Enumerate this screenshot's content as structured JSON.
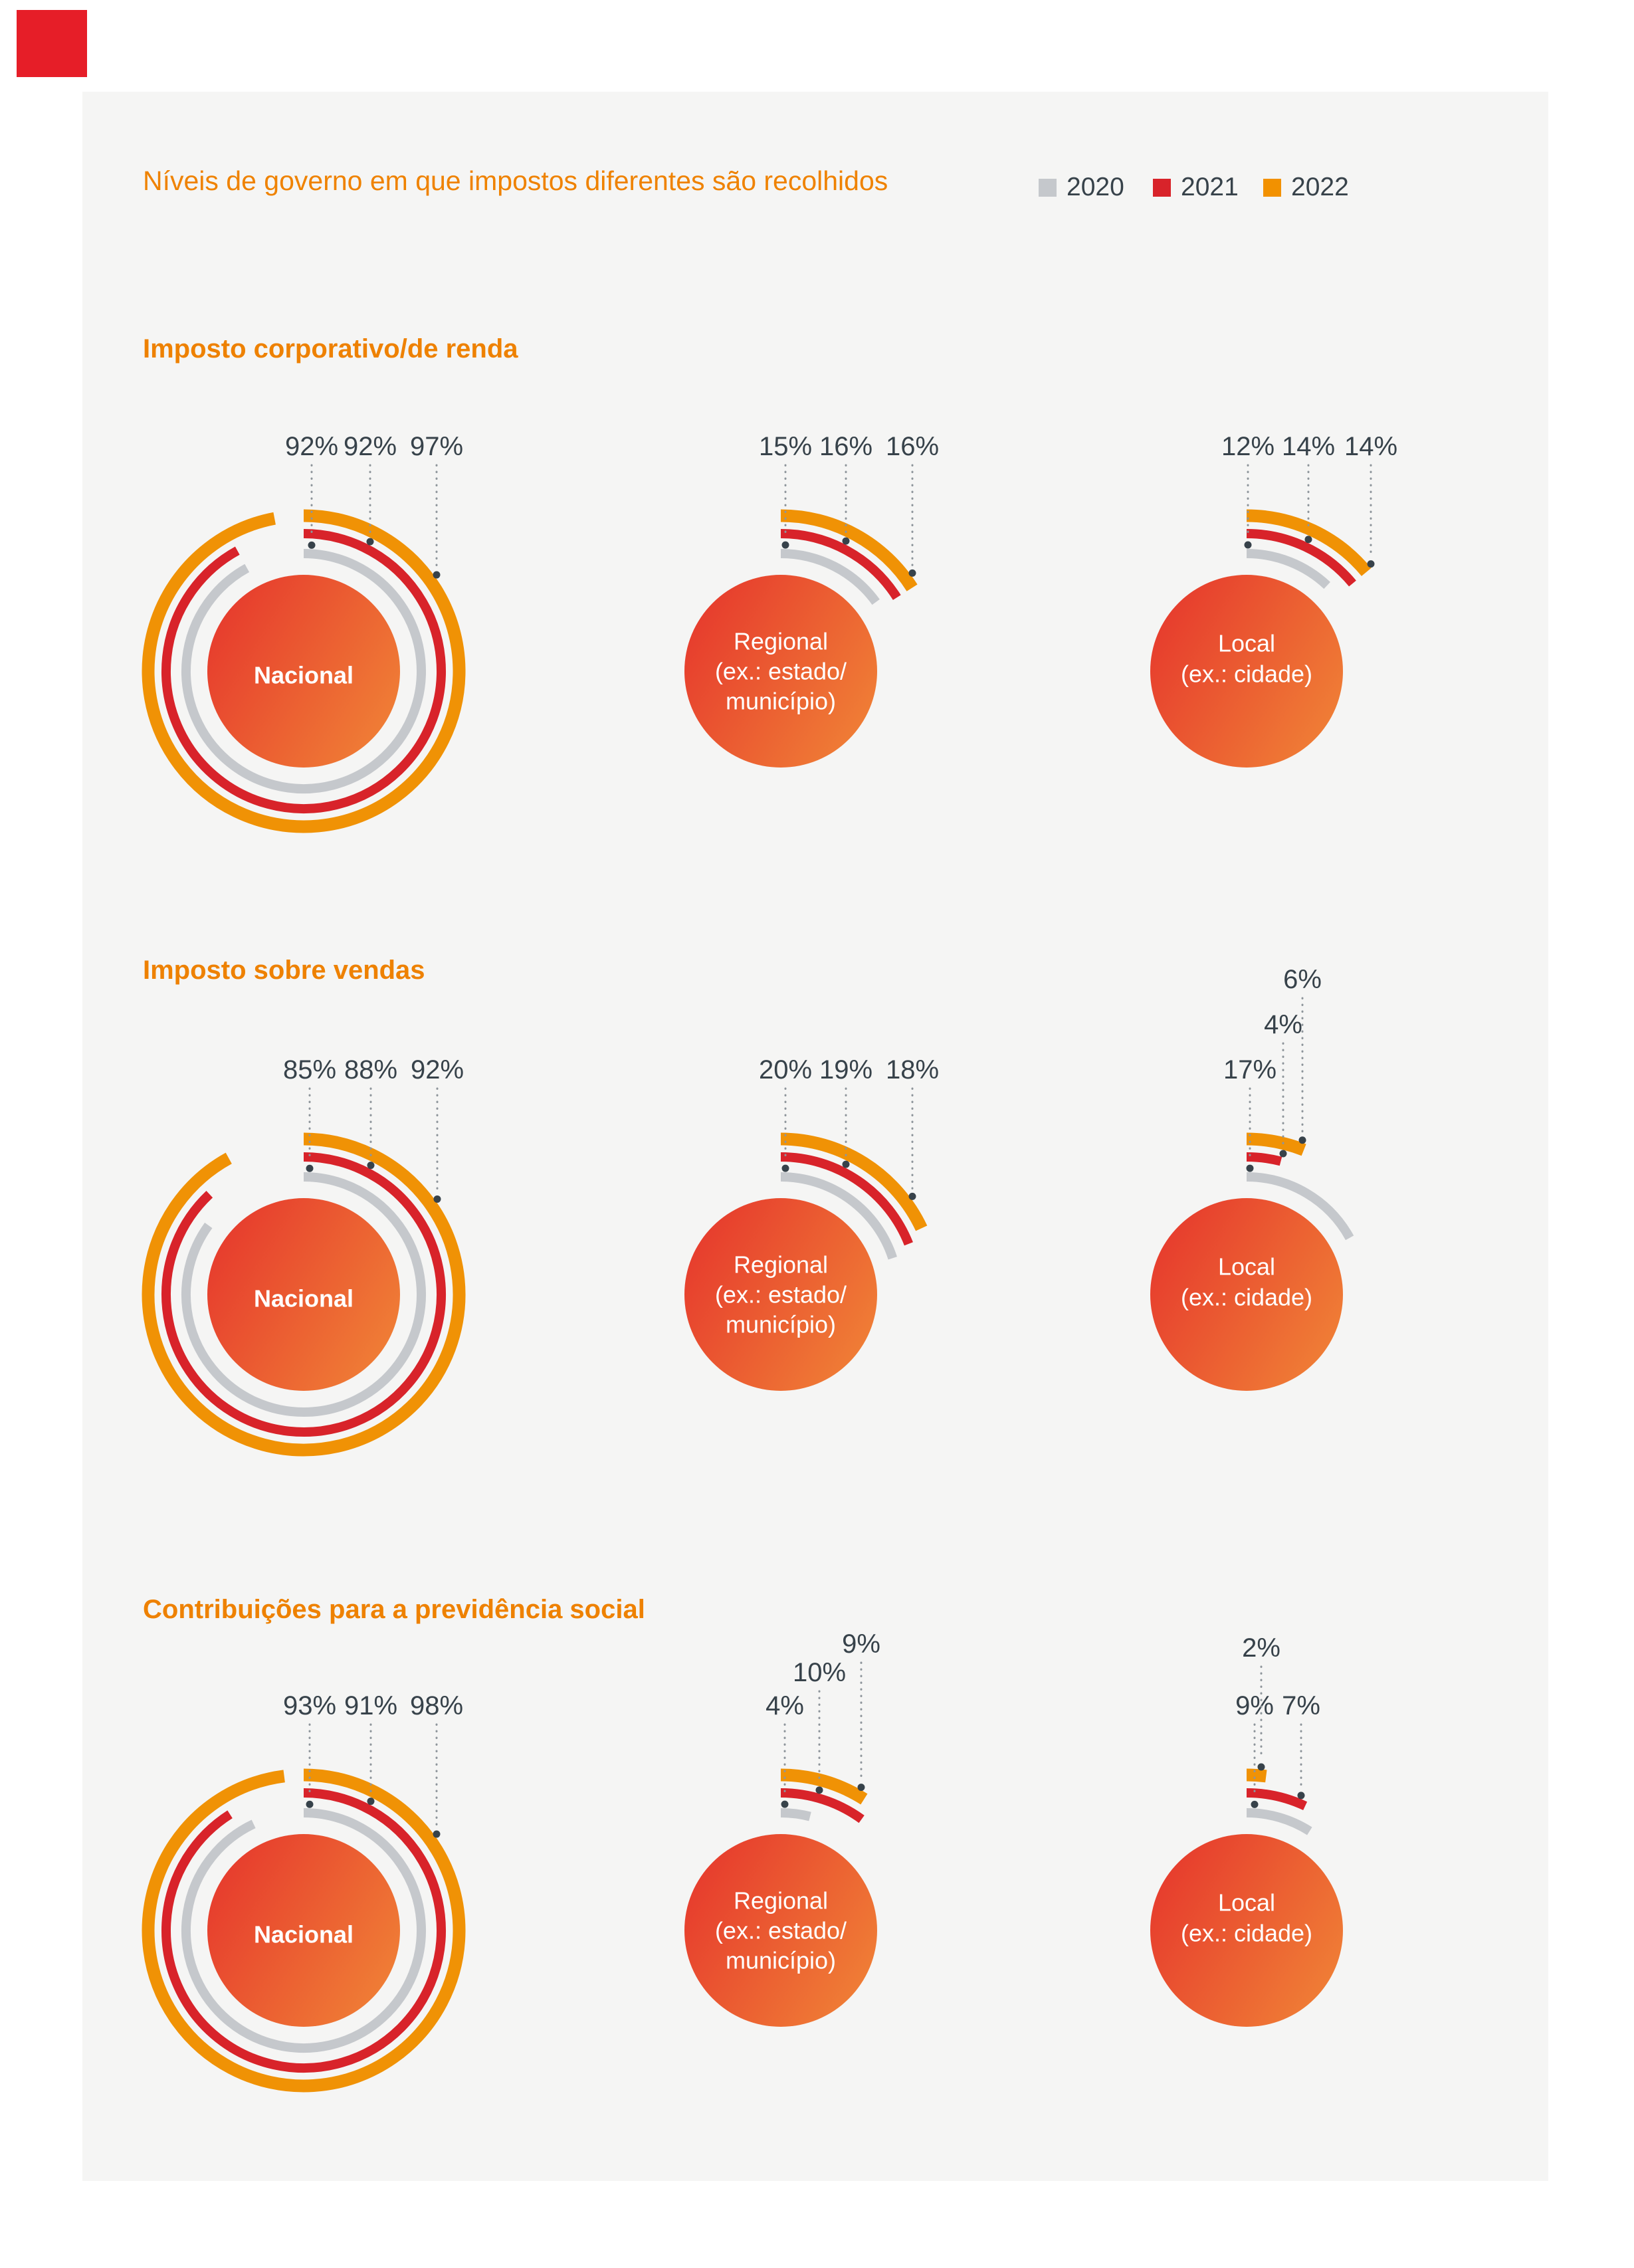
{
  "header": {
    "title": "Níveis de governo em que impostos diferentes são recolhidos"
  },
  "legend": {
    "items": [
      {
        "label": "2020",
        "color": "#c5c8cc"
      },
      {
        "label": "2021",
        "color": "#d8232a"
      },
      {
        "label": "2022",
        "color": "#f29100"
      }
    ]
  },
  "colors": {
    "page_background": "#ffffff",
    "panel_background": "#f5f5f4",
    "title_orange": "#ef8200",
    "section_orange": "#ee8100",
    "text_dark": "#37424a",
    "leader_gray": "#8e959b",
    "brand_red": "#e61e28"
  },
  "chart_data": {
    "type": "pie",
    "variant": "concentric-arc-rings",
    "unit": "%",
    "years": [
      "2020",
      "2021",
      "2022"
    ],
    "ring_colors": {
      "2020": "#c5c8cc",
      "2021": "#d8232a",
      "2022": "#f09205"
    },
    "circle_gradient": [
      "#e6392d",
      "#f08136"
    ],
    "legend_position": "top-right",
    "sections": [
      {
        "title": "Imposto corporativo/de renda",
        "charts": [
          {
            "name": "Nacional",
            "bold": true,
            "center_lines": [
              "Nacional"
            ],
            "series": [
              {
                "year": "2020",
                "value": 92,
                "label": "92%",
                "dx": 12,
                "lift": 0
              },
              {
                "year": "2021",
                "value": 92,
                "label": "92%",
                "dx": 100,
                "lift": 0
              },
              {
                "year": "2022",
                "value": 97,
                "label": "97%",
                "dx": 200,
                "lift": 0
              }
            ]
          },
          {
            "name": "Regional",
            "bold": false,
            "center_lines": [
              "Regional",
              "(ex.: estado/",
              "município)"
            ],
            "series": [
              {
                "year": "2020",
                "value": 15,
                "label": "15%",
                "dx": 7,
                "lift": 0
              },
              {
                "year": "2021",
                "value": 16,
                "label": "16%",
                "dx": 98,
                "lift": 0
              },
              {
                "year": "2022",
                "value": 16,
                "label": "16%",
                "dx": 198,
                "lift": 0
              }
            ]
          },
          {
            "name": "Local",
            "bold": false,
            "center_lines": [
              "Local",
              "(ex.: cidade)"
            ],
            "series": [
              {
                "year": "2020",
                "value": 12,
                "label": "12%",
                "dx": 2,
                "lift": 0
              },
              {
                "year": "2021",
                "value": 14,
                "label": "14%",
                "dx": 93,
                "lift": 0
              },
              {
                "year": "2022",
                "value": 14,
                "label": "14%",
                "dx": 187,
                "lift": 0
              }
            ]
          }
        ]
      },
      {
        "title": "Imposto sobre vendas",
        "charts": [
          {
            "name": "Nacional",
            "bold": true,
            "center_lines": [
              "Nacional"
            ],
            "series": [
              {
                "year": "2020",
                "value": 85,
                "label": "85%",
                "dx": 9,
                "lift": 0
              },
              {
                "year": "2021",
                "value": 88,
                "label": "88%",
                "dx": 101,
                "lift": 0
              },
              {
                "year": "2022",
                "value": 92,
                "label": "92%",
                "dx": 201,
                "lift": 0
              }
            ]
          },
          {
            "name": "Regional",
            "bold": false,
            "center_lines": [
              "Regional",
              "(ex.: estado/",
              "município)"
            ],
            "series": [
              {
                "year": "2020",
                "value": 20,
                "label": "20%",
                "dx": 7,
                "lift": 0
              },
              {
                "year": "2021",
                "value": 19,
                "label": "19%",
                "dx": 98,
                "lift": 0
              },
              {
                "year": "2022",
                "value": 18,
                "label": "18%",
                "dx": 198,
                "lift": 0
              }
            ]
          },
          {
            "name": "Local",
            "bold": false,
            "center_lines": [
              "Local",
              "(ex.: cidade)"
            ],
            "series": [
              {
                "year": "2020",
                "value": 17,
                "label": "17%",
                "dx": 5,
                "lift": 0
              },
              {
                "year": "2021",
                "value": 4,
                "label": "4%",
                "dx": 55,
                "lift": -68
              },
              {
                "year": "2022",
                "value": 6,
                "label": "6%",
                "dx": 84,
                "lift": -136
              }
            ]
          }
        ]
      },
      {
        "title": "Contribuições para a previdência social",
        "charts": [
          {
            "name": "Nacional",
            "bold": true,
            "center_lines": [
              "Nacional"
            ],
            "series": [
              {
                "year": "2020",
                "value": 93,
                "label": "93%",
                "dx": 9,
                "lift": 0
              },
              {
                "year": "2021",
                "value": 91,
                "label": "91%",
                "dx": 101,
                "lift": 0
              },
              {
                "year": "2022",
                "value": 98,
                "label": "98%",
                "dx": 200,
                "lift": 0
              }
            ]
          },
          {
            "name": "Regional",
            "bold": false,
            "center_lines": [
              "Regional",
              "(ex.: estado/",
              "município)"
            ],
            "series": [
              {
                "year": "2020",
                "value": 4,
                "label": "4%",
                "dx": 6,
                "lift": 0
              },
              {
                "year": "2021",
                "value": 10,
                "label": "10%",
                "dx": 58,
                "lift": -50
              },
              {
                "year": "2022",
                "value": 9,
                "label": "9%",
                "dx": 121,
                "lift": -93
              }
            ]
          },
          {
            "name": "Local",
            "bold": false,
            "center_lines": [
              "Local",
              "(ex.: cidade)"
            ],
            "series": [
              {
                "year": "2020",
                "value": 9,
                "label": "9%",
                "dx": 12,
                "lift": 0
              },
              {
                "year": "2021",
                "value": 7,
                "label": "7%",
                "dx": 82,
                "lift": 0
              },
              {
                "year": "2022",
                "value": 2,
                "label": "2%",
                "dx": 22,
                "lift": -87
              }
            ]
          }
        ]
      }
    ]
  }
}
